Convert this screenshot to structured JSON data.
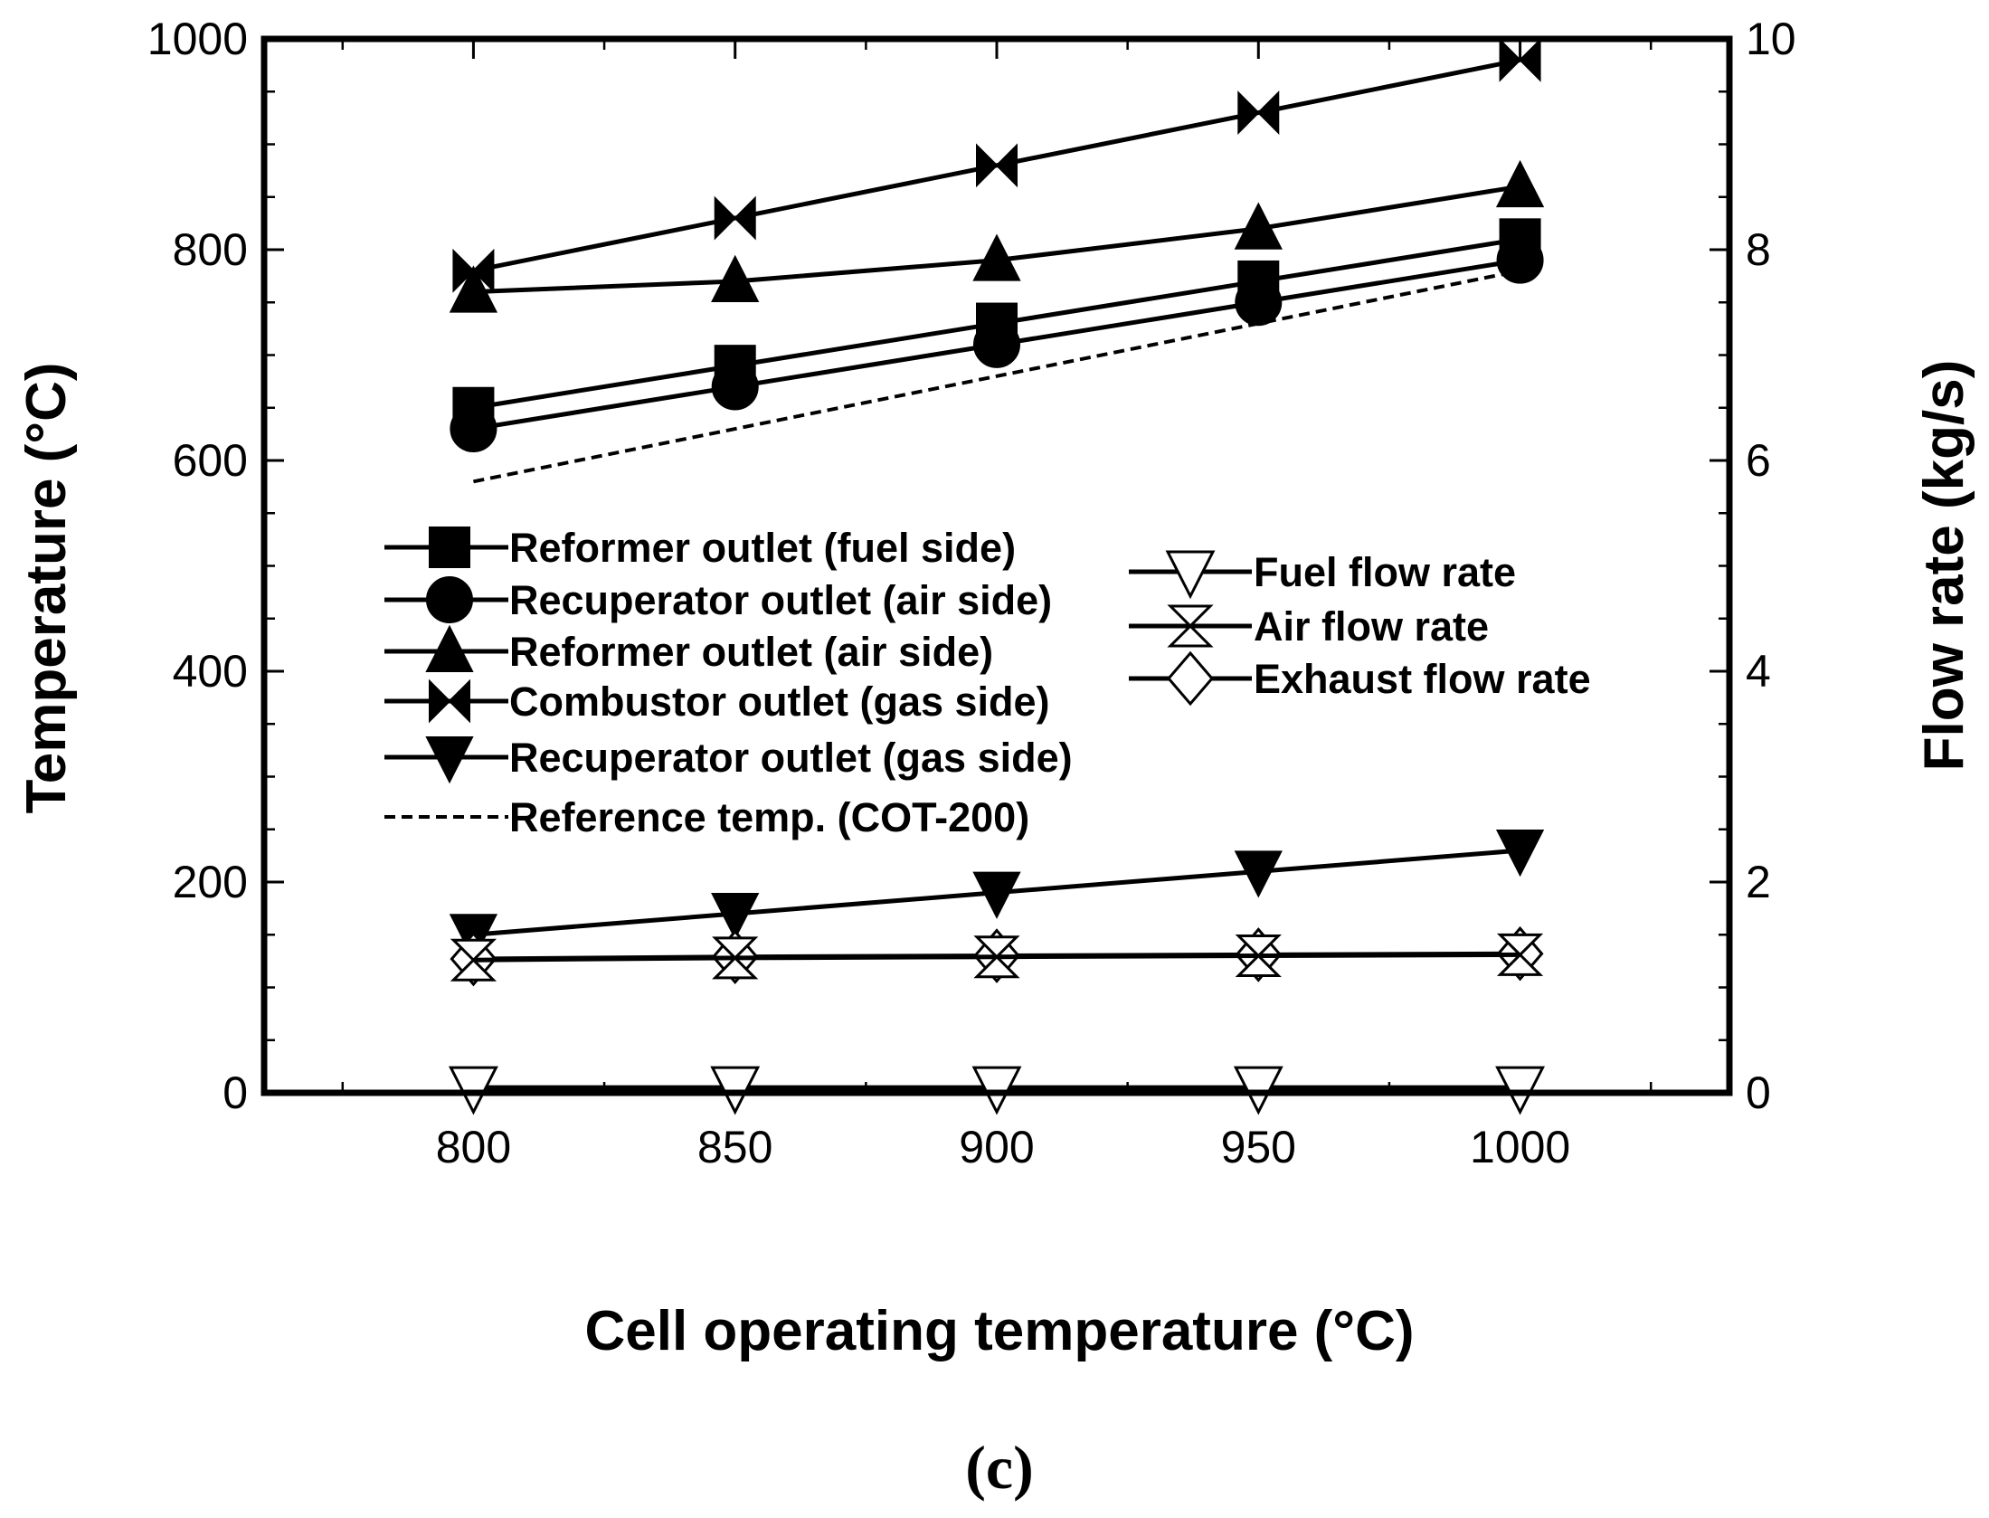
{
  "chart_data": {
    "type": "line",
    "x": [
      800,
      850,
      900,
      950,
      1000
    ],
    "xlabel": "Cell operating temperature (°C)",
    "xticks": [
      "800",
      "850",
      "900",
      "950",
      "1000"
    ],
    "xlim": [
      760,
      1040
    ],
    "ylabel": "Temperature (°C)",
    "yticks": [
      "0",
      "200",
      "400",
      "600",
      "800",
      "1000"
    ],
    "ylim": [
      0,
      1000
    ],
    "y2label": "Flow rate (kg/s)",
    "y2ticks": [
      "0",
      "2",
      "4",
      "6",
      "8",
      "10"
    ],
    "y2lim": [
      0,
      10
    ],
    "caption": "(c)",
    "series": [
      {
        "name": "Reformer outlet (fuel side)",
        "axis": "left",
        "marker": "square",
        "style": "solid",
        "values": [
          650,
          690,
          730,
          770,
          810
        ]
      },
      {
        "name": "Recuperator outlet (air side)",
        "axis": "left",
        "marker": "circle",
        "style": "solid",
        "values": [
          630,
          670,
          710,
          750,
          790
        ]
      },
      {
        "name": "Reformer outlet (air side)",
        "axis": "left",
        "marker": "triangle-up",
        "style": "solid",
        "values": [
          760,
          770,
          790,
          820,
          860
        ]
      },
      {
        "name": "Combustor outlet (gas side)",
        "axis": "left",
        "marker": "bowtie",
        "style": "solid",
        "values": [
          780,
          830,
          880,
          930,
          980
        ]
      },
      {
        "name": "Recuperator outlet (gas side)",
        "axis": "left",
        "marker": "triangle-down",
        "style": "solid",
        "values": [
          150,
          170,
          190,
          210,
          230
        ]
      },
      {
        "name": "Reference temp. (COT-200)",
        "axis": "left",
        "marker": "none",
        "style": "dashed",
        "values": [
          580,
          630,
          680,
          730,
          780
        ]
      },
      {
        "name": "Fuel flow rate",
        "axis": "right",
        "marker": "triangle-down-open",
        "style": "solid",
        "values": [
          0.05,
          0.05,
          0.05,
          0.05,
          0.05
        ]
      },
      {
        "name": "Air flow rate",
        "axis": "right",
        "marker": "hourglass-open",
        "style": "solid",
        "values": [
          1.26,
          1.28,
          1.29,
          1.3,
          1.31
        ]
      },
      {
        "name": "Exhaust flow rate",
        "axis": "right",
        "marker": "diamond-open",
        "style": "solid",
        "values": [
          1.27,
          1.29,
          1.3,
          1.31,
          1.32
        ]
      }
    ],
    "legend_left": [
      0,
      1,
      2,
      3,
      4,
      5
    ],
    "legend_right": [
      6,
      7,
      8
    ]
  }
}
